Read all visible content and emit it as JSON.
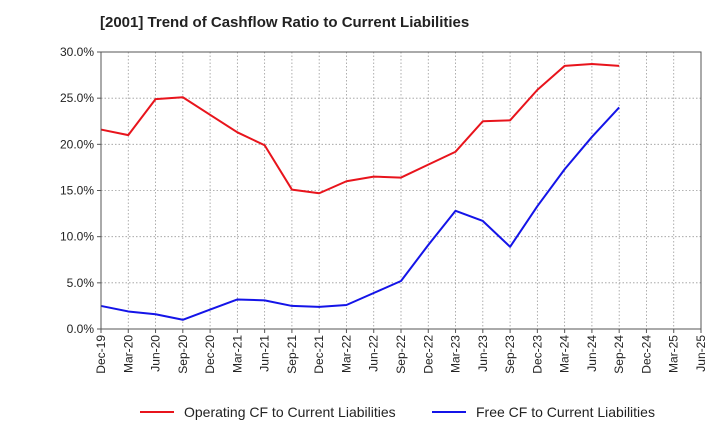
{
  "chart_data": {
    "type": "line",
    "title": "[2001]  Trend of Cashflow Ratio to Current Liabilities",
    "xlabel": "",
    "ylabel": "",
    "ylim": [
      0,
      30
    ],
    "y_tick_labels": [
      "0.0%",
      "5.0%",
      "10.0%",
      "15.0%",
      "20.0%",
      "25.0%",
      "30.0%"
    ],
    "categories": [
      "Dec-19",
      "Mar-20",
      "Jun-20",
      "Sep-20",
      "Dec-20",
      "Mar-21",
      "Jun-21",
      "Sep-21",
      "Dec-21",
      "Mar-22",
      "Jun-22",
      "Sep-22",
      "Dec-22",
      "Mar-23",
      "Jun-23",
      "Sep-23",
      "Dec-23",
      "Mar-24",
      "Jun-24",
      "Sep-24",
      "Dec-24",
      "Mar-25"
    ],
    "x_tick_labels": [
      "Dec-19",
      "Mar-20",
      "Jun-20",
      "Sep-20",
      "Dec-20",
      "Mar-21",
      "Jun-21",
      "Sep-21",
      "Dec-21",
      "Mar-22",
      "Jun-22",
      "Sep-22",
      "Dec-22",
      "Mar-23",
      "Jun-23",
      "Sep-23",
      "Dec-23",
      "Mar-24",
      "Jun-24",
      "Sep-24",
      "Dec-24",
      "Mar-25",
      "Jun-25"
    ],
    "grid": true,
    "legend_position": "bottom",
    "series": [
      {
        "name": "Operating CF to Current Liabilities",
        "color": "#e8141c",
        "values": [
          21.6,
          21.0,
          24.9,
          25.1,
          23.2,
          21.3,
          19.9,
          15.1,
          14.7,
          16.0,
          16.5,
          16.4,
          17.8,
          19.2,
          22.5,
          22.6,
          25.9,
          28.5,
          28.7,
          28.5,
          null,
          null
        ]
      },
      {
        "name": "Free CF to Current Liabilities",
        "color": "#1414e8",
        "values": [
          2.5,
          1.9,
          1.6,
          1.0,
          2.1,
          3.2,
          3.1,
          2.5,
          2.4,
          2.6,
          3.9,
          5.2,
          9.1,
          12.8,
          11.7,
          8.9,
          13.3,
          17.3,
          20.8,
          24.0,
          null,
          null
        ]
      }
    ]
  }
}
